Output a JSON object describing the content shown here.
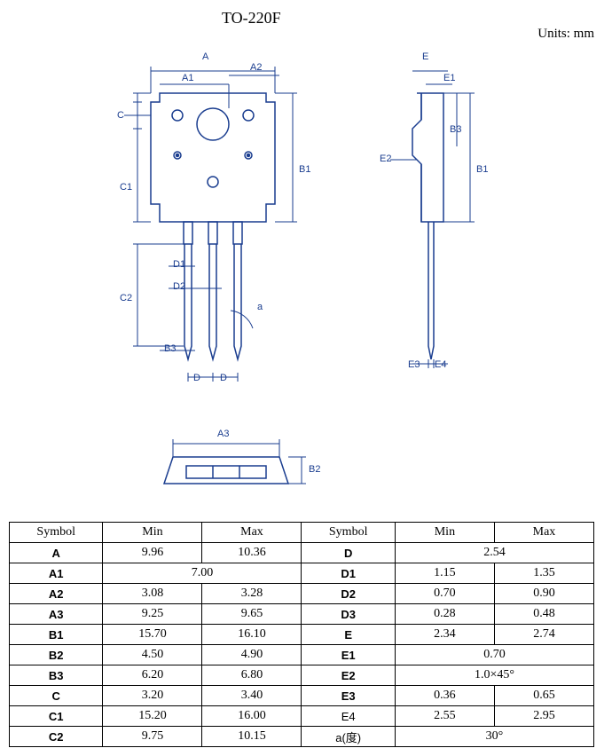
{
  "title": "TO-220F",
  "units_label": "Units: mm",
  "colors": {
    "line": "#1a3d8f",
    "text": "#000000",
    "bg": "#ffffff"
  },
  "diagram": {
    "front": {
      "labels": [
        "A",
        "A1",
        "A2",
        "C",
        "C1",
        "C2",
        "B1",
        "D1",
        "D2",
        "B3",
        "D",
        "a"
      ],
      "label_A": "A",
      "label_A1": "A1",
      "label_A2": "A2",
      "label_C": "C",
      "label_C1": "C1",
      "label_C2": "C2",
      "label_B1": "B1",
      "label_D1": "D1",
      "label_D2": "D2",
      "label_B3": "B3",
      "label_D": "D",
      "label_a": "a"
    },
    "side": {
      "label_E": "E",
      "label_E1": "E1",
      "label_B3s": "B3",
      "label_B1s": "B1",
      "label_E2": "E2",
      "label_E3": "E3",
      "label_E4": "E4"
    },
    "bottom": {
      "label_A3": "A3",
      "label_B2": "B2"
    }
  },
  "table": {
    "headers": [
      "Symbol",
      "Min",
      "Max",
      "Symbol",
      "Min",
      "Max"
    ],
    "rows": [
      {
        "s1": "A",
        "s1b": true,
        "min1": "9.96",
        "max1": "10.36",
        "s2": "D",
        "s2b": true,
        "merged2": "2.54"
      },
      {
        "s1": "A1",
        "s1b": true,
        "merged1": "7.00",
        "s2": "D1",
        "s2b": true,
        "min2": "1.15",
        "max2": "1.35"
      },
      {
        "s1": "A2",
        "s1b": true,
        "min1": "3.08",
        "max1": "3.28",
        "s2": "D2",
        "s2b": true,
        "min2": "0.70",
        "max2": "0.90"
      },
      {
        "s1": "A3",
        "s1b": true,
        "min1": "9.25",
        "max1": "9.65",
        "s2": "D3",
        "s2b": true,
        "min2": "0.28",
        "max2": "0.48"
      },
      {
        "s1": "B1",
        "s1b": true,
        "min1": "15.70",
        "max1": "16.10",
        "s2": "E",
        "s2b": true,
        "min2": "2.34",
        "max2": "2.74"
      },
      {
        "s1": "B2",
        "s1b": true,
        "min1": "4.50",
        "max1": "4.90",
        "s2": "E1",
        "s2b": true,
        "merged2": "0.70"
      },
      {
        "s1": "B3",
        "s1b": true,
        "min1": "6.20",
        "max1": "6.80",
        "s2": "E2",
        "s2b": true,
        "merged2": "1.0×45°"
      },
      {
        "s1": "C",
        "s1b": true,
        "min1": "3.20",
        "max1": "3.40",
        "s2": "E3",
        "s2b": true,
        "min2": "0.36",
        "max2": "0.65"
      },
      {
        "s1": "C1",
        "s1b": true,
        "min1": "15.20",
        "max1": "16.00",
        "s2": "E4",
        "s2b": false,
        "min2": "2.55",
        "max2": "2.95"
      },
      {
        "s1": "C2",
        "s1b": true,
        "min1": "9.75",
        "max1": "10.15",
        "s2": "a(度)",
        "s2b": false,
        "merged2": "30°"
      }
    ]
  }
}
